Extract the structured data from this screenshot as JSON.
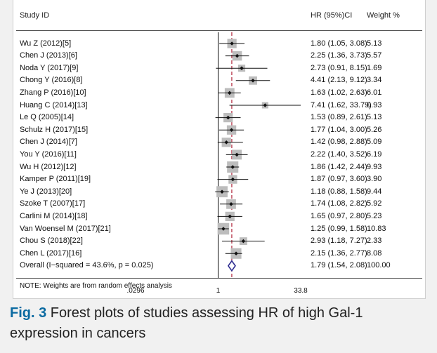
{
  "header": {
    "study_label": "Study ID",
    "hr_label": "HR (95%)CI",
    "weight_label": "Weight %"
  },
  "note": "NOTE: Weights are from random effects analysis",
  "caption": {
    "fig_label": "Fig. 3",
    "text": "Forest plots of studies assessing HR of high Gal-1 expression in cancers"
  },
  "chart_data": {
    "type": "forest",
    "x_scale": "log",
    "x_range": [
      0.0296,
      33.8
    ],
    "x_ticks": [
      ".0296",
      "1",
      "33.8"
    ],
    "null_value": 1,
    "pooled_line": 1.79,
    "studies": [
      {
        "name": "Wu Z (2012)[5]",
        "hr": 1.8,
        "lo": 1.05,
        "hi": 3.08,
        "ci": "1.80 (1.05, 3.08)",
        "weight": "5.13",
        "w": 5.13
      },
      {
        "name": "Chen J (2013)[6]",
        "hr": 2.25,
        "lo": 1.36,
        "hi": 3.73,
        "ci": "2.25 (1.36, 3.73)",
        "weight": "5.57",
        "w": 5.57
      },
      {
        "name": "Noda Y (2017)[9]",
        "hr": 2.73,
        "lo": 0.91,
        "hi": 8.15,
        "ci": "2.73 (0.91, 8.15)",
        "weight": "1.69",
        "w": 1.69
      },
      {
        "name": "Chong Y (2016)[8]",
        "hr": 4.41,
        "lo": 2.13,
        "hi": 9.12,
        "ci": "4.41 (2.13, 9.12)",
        "weight": "3.34",
        "w": 3.34
      },
      {
        "name": "Zhang P (2016)[10]",
        "hr": 1.63,
        "lo": 1.02,
        "hi": 2.63,
        "ci": "1.63 (1.02, 2.63)",
        "weight": "6.01",
        "w": 6.01
      },
      {
        "name": "Huang C (2014)[13]",
        "hr": 7.41,
        "lo": 1.62,
        "hi": 33.79,
        "ci": "7.41 (1.62, 33.79)",
        "weight": "0.93",
        "w": 0.93
      },
      {
        "name": "Le Q (2005)[14]",
        "hr": 1.53,
        "lo": 0.89,
        "hi": 2.61,
        "ci": "1.53 (0.89, 2.61)",
        "weight": "5.13",
        "w": 5.13
      },
      {
        "name": "Schulz H (2017)[15]",
        "hr": 1.77,
        "lo": 1.04,
        "hi": 3.0,
        "ci": "1.77 (1.04, 3.00)",
        "weight": "5.26",
        "w": 5.26
      },
      {
        "name": "Chen J (2014)[7]",
        "hr": 1.42,
        "lo": 0.98,
        "hi": 2.88,
        "ci": "1.42 (0.98, 2.88)",
        "weight": "5.09",
        "w": 5.09
      },
      {
        "name": "You Y (2016)[11]",
        "hr": 2.22,
        "lo": 1.4,
        "hi": 3.52,
        "ci": "2.22 (1.40, 3.52)",
        "weight": "6.19",
        "w": 6.19
      },
      {
        "name": "Wu H (2012)[12]",
        "hr": 1.86,
        "lo": 1.42,
        "hi": 2.44,
        "ci": "1.86 (1.42, 2.44)",
        "weight": "9.93",
        "w": 9.93
      },
      {
        "name": "Kamper P (2011)[19]",
        "hr": 1.87,
        "lo": 0.97,
        "hi": 3.6,
        "ci": "1.87 (0.97, 3.60)",
        "weight": "3.90",
        "w": 3.9
      },
      {
        "name": "Ye J (2013)[20]",
        "hr": 1.18,
        "lo": 0.88,
        "hi": 1.58,
        "ci": "1.18 (0.88, 1.58)",
        "weight": "9.44",
        "w": 9.44
      },
      {
        "name": "Szoke T (2007)[17]",
        "hr": 1.74,
        "lo": 1.08,
        "hi": 2.82,
        "ci": "1.74 (1.08, 2.82)",
        "weight": "5.92",
        "w": 5.92
      },
      {
        "name": "Carlini M (2014)[18]",
        "hr": 1.65,
        "lo": 0.97,
        "hi": 2.8,
        "ci": "1.65 (0.97, 2.80)",
        "weight": "5.23",
        "w": 5.23
      },
      {
        "name": "Van Woensel M (2017)[21]",
        "hr": 1.25,
        "lo": 0.99,
        "hi": 1.58,
        "ci": "1.25 (0.99, 1.58)",
        "weight": "10.83",
        "w": 10.83
      },
      {
        "name": "Chou S (2018)[22]",
        "hr": 2.93,
        "lo": 1.18,
        "hi": 7.27,
        "ci": "2.93 (1.18, 7.27)",
        "weight": "2.33",
        "w": 2.33
      },
      {
        "name": "Chen L (2017)[16]",
        "hr": 2.15,
        "lo": 1.36,
        "hi": 2.77,
        "ci": "2.15 (1.36, 2.77)",
        "weight": "8.08",
        "w": 8.08
      }
    ],
    "overall": {
      "name": "Overall  (I−squared = 43.6%, p = 0.025)",
      "hr": 1.79,
      "lo": 1.54,
      "hi": 2.08,
      "ci": "1.79 (1.54, 2.08)",
      "weight": "100.00"
    },
    "colors": {
      "box": "#bdbdbd",
      "point": "#111111",
      "ci_line": "#111111",
      "null_line": "#111111",
      "pooled_line": "#b0253b",
      "diamond": "#2b2a8f"
    }
  }
}
